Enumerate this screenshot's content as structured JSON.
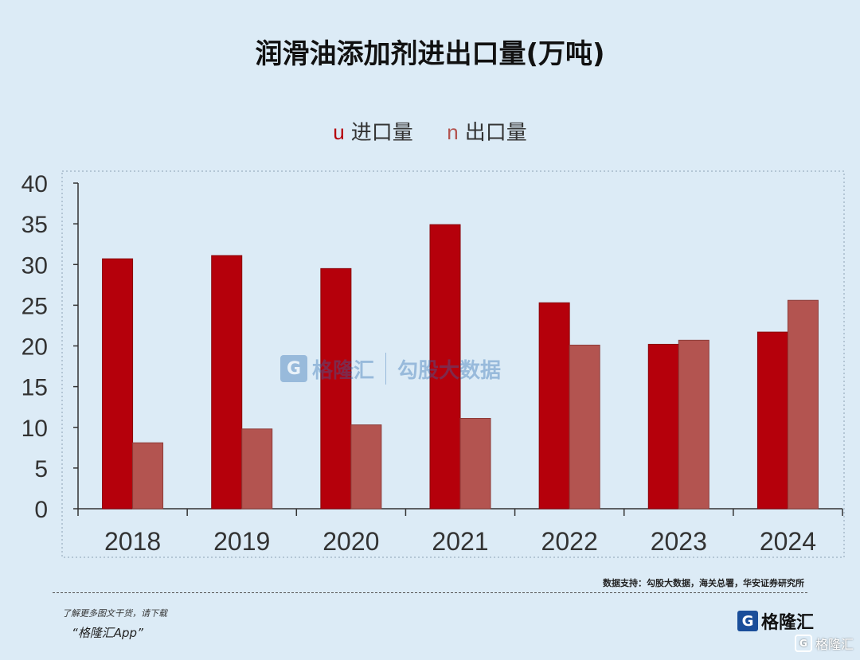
{
  "title": "润滑油添加剂进出口量(万吨)",
  "legend": {
    "import_marker": "u",
    "import_label": "进口量",
    "export_marker": "n",
    "export_label": "出口量"
  },
  "chart_data": {
    "type": "bar",
    "title": "润滑油添加剂进出口量(万吨)",
    "categories": [
      "2018",
      "2019",
      "2020",
      "2021",
      "2022",
      "2023",
      "2024"
    ],
    "series": [
      {
        "name": "进口量",
        "color": "#b5000b",
        "values": [
          30.7,
          31.1,
          29.5,
          34.9,
          25.3,
          20.2,
          21.7
        ]
      },
      {
        "name": "出口量",
        "color": "#b35450",
        "values": [
          8.1,
          9.8,
          10.3,
          11.1,
          20.1,
          20.7,
          25.6
        ]
      }
    ],
    "yticks": [
      "0",
      "5",
      "10",
      "15",
      "20",
      "25",
      "30",
      "35",
      "40"
    ],
    "ylim": [
      0,
      40
    ],
    "legend_position": "top-center",
    "grid": false
  },
  "source": "数据支持：勾股大数据，海关总署，华安证券研究所",
  "promo": {
    "line1": "了解更多图文干货，请下载",
    "line2": "“格隆汇App”"
  },
  "brand": {
    "icon": "G",
    "name": "格隆汇"
  },
  "watermark": {
    "icon": "G",
    "left": "格隆汇",
    "right": "勾股大数据"
  },
  "corner": {
    "icon": "G",
    "name": "格隆汇"
  }
}
